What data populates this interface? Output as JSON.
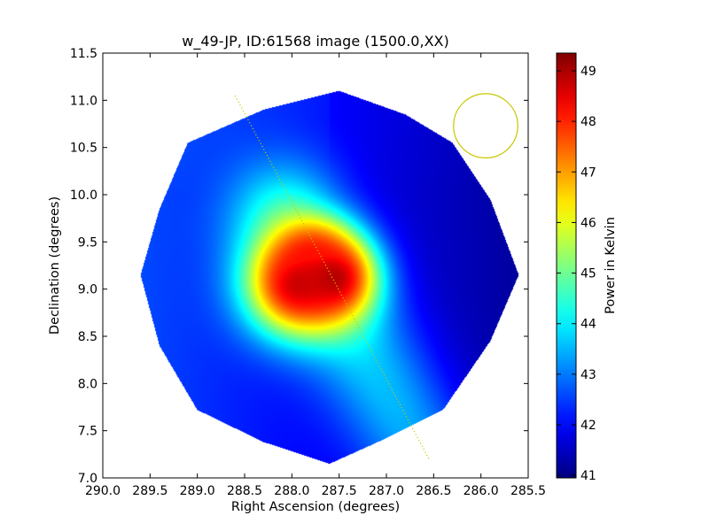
{
  "chart_data": {
    "type": "heatmap",
    "title": "w_49-JP, ID:61568 image (1500.0,XX)",
    "xlabel": "Right Ascension (degrees)",
    "ylabel": "Declination (degrees)",
    "xlim": [
      290.0,
      285.5
    ],
    "ylim": [
      7.0,
      11.5
    ],
    "xticks": [
      "290.0",
      "289.5",
      "289.0",
      "288.5",
      "288.0",
      "287.5",
      "287.0",
      "286.5",
      "286.0",
      "285.5"
    ],
    "yticks": [
      "7.0",
      "7.5",
      "8.0",
      "8.5",
      "9.0",
      "9.5",
      "10.0",
      "10.5",
      "11.0",
      "11.5"
    ],
    "colorbar": {
      "label": "Power in Kelvin",
      "min": 40.95,
      "max": 49.35,
      "ticks": [
        "41",
        "42",
        "43",
        "44",
        "45",
        "46",
        "47",
        "48",
        "49"
      ],
      "colormap": "jet"
    },
    "map_footprint_octagon": [
      [
        289.1,
        10.55
      ],
      [
        288.3,
        10.9
      ],
      [
        287.5,
        11.1
      ],
      [
        286.8,
        10.85
      ],
      [
        286.3,
        10.55
      ],
      [
        285.9,
        9.95
      ],
      [
        285.6,
        9.15
      ],
      [
        285.9,
        8.45
      ],
      [
        286.4,
        7.72
      ],
      [
        287.0,
        7.42
      ],
      [
        287.6,
        7.15
      ],
      [
        288.3,
        7.38
      ],
      [
        289.0,
        7.72
      ],
      [
        289.4,
        8.4
      ],
      [
        289.6,
        9.15
      ],
      [
        289.4,
        9.85
      ]
    ],
    "features": [
      {
        "kind": "ridge",
        "from": [
          288.1,
          9.8
        ],
        "to": [
          286.75,
          7.45
        ],
        "value": 44.2,
        "width_deg": 0.42
      },
      {
        "kind": "source",
        "ra": 287.95,
        "dec": 9.05,
        "peak": 48.6,
        "sigma_deg": 0.38
      },
      {
        "kind": "source",
        "ra": 287.55,
        "dec": 9.12,
        "peak": 48.9,
        "sigma_deg": 0.3
      },
      {
        "kind": "source",
        "ra": 287.8,
        "dec": 9.3,
        "peak": 48.2,
        "sigma_deg": 0.28
      }
    ],
    "background_gradient": {
      "east_min": 41.2,
      "west_max": 42.6
    },
    "galactic_plane_line": {
      "color": "#c8c800",
      "style": "dotted",
      "from": [
        288.6,
        11.05
      ],
      "to": [
        286.55,
        7.2
      ]
    },
    "beam_circle": {
      "color": "#c8c800",
      "ra": 285.95,
      "dec": 10.73,
      "radius_deg": 0.34
    },
    "grid": false,
    "legend": "none"
  }
}
